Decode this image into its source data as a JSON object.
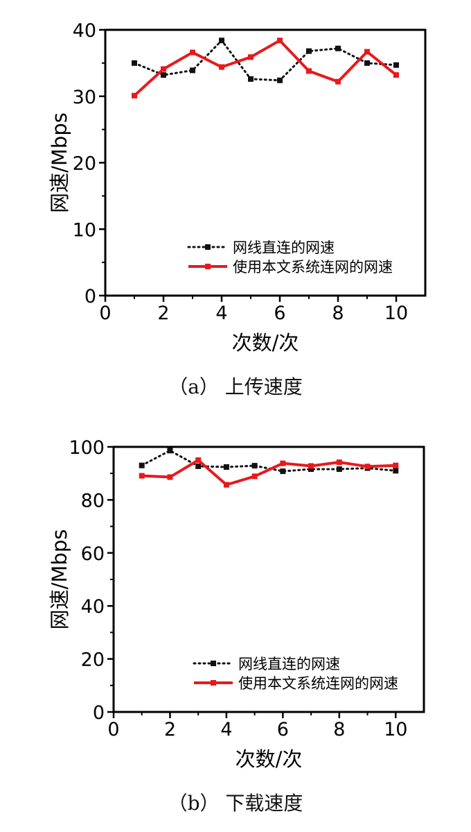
{
  "chart_data": [
    {
      "type": "line",
      "caption": "（a） 上传速度",
      "xlabel": "次数/次",
      "ylabel": "网速/Mbps",
      "xlim": [
        0,
        11
      ],
      "ylim": [
        0,
        40
      ],
      "xticks": [
        "0",
        "2",
        "4",
        "6",
        "8",
        "10"
      ],
      "yticks": [
        "0",
        "10",
        "20",
        "30",
        "40"
      ],
      "legend_position": "bottom-right",
      "grid": false,
      "x": [
        1,
        2,
        3,
        4,
        5,
        6,
        7,
        8,
        9,
        10
      ],
      "series": [
        {
          "name": "网线直连的网速",
          "color": "#111111",
          "style": "dotted",
          "values": [
            35.0,
            33.2,
            33.9,
            38.4,
            32.6,
            32.4,
            36.8,
            37.2,
            35.0,
            34.7
          ]
        },
        {
          "name": "使用本文系统连网的网速",
          "color": "#e8191c",
          "style": "solid",
          "values": [
            30.1,
            34.1,
            36.6,
            34.4,
            35.9,
            38.4,
            33.8,
            32.2,
            36.7,
            33.2
          ]
        }
      ]
    },
    {
      "type": "line",
      "caption": "（b） 下载速度",
      "xlabel": "次数/次",
      "ylabel": "网速/Mbps",
      "xlim": [
        0,
        11
      ],
      "ylim": [
        0,
        100
      ],
      "xticks": [
        "0",
        "2",
        "4",
        "6",
        "8",
        "10"
      ],
      "yticks": [
        "0",
        "20",
        "40",
        "60",
        "80",
        "100"
      ],
      "legend_position": "bottom-right",
      "grid": false,
      "x": [
        1,
        2,
        3,
        4,
        5,
        6,
        7,
        8,
        9,
        10
      ],
      "series": [
        {
          "name": "网线直连的网速",
          "color": "#111111",
          "style": "dotted",
          "values": [
            93.0,
            98.6,
            92.7,
            92.4,
            92.9,
            90.8,
            91.6,
            91.6,
            92.0,
            91.0
          ]
        },
        {
          "name": "使用本文系统连网的网速",
          "color": "#e8191c",
          "style": "solid",
          "values": [
            89.1,
            88.6,
            95.0,
            85.7,
            88.9,
            93.8,
            92.8,
            94.2,
            92.6,
            93.0
          ]
        }
      ]
    }
  ]
}
